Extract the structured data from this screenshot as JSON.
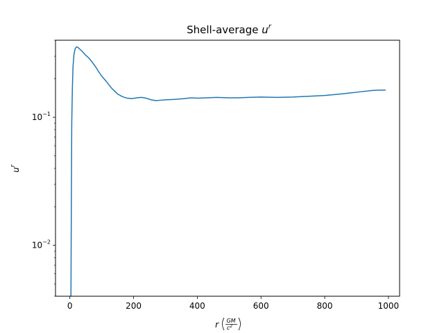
{
  "chart_data": {
    "type": "line",
    "title_text": "Shell-average ",
    "title_var": "u",
    "title_sup": "r",
    "xlabel": {
      "var": "r",
      "num": "GM",
      "den_base": "c",
      "den_exp": "2"
    },
    "ylabel": {
      "var": "u",
      "sup": "r"
    },
    "x_scale": "linear",
    "y_scale": "log",
    "xlim": [
      -45,
      1035
    ],
    "ylim": [
      0.004,
      0.4
    ],
    "x_ticks": [
      {
        "value": 0,
        "label": "0"
      },
      {
        "value": 200,
        "label": "200"
      },
      {
        "value": 400,
        "label": "400"
      },
      {
        "value": 600,
        "label": "600"
      },
      {
        "value": 800,
        "label": "800"
      },
      {
        "value": 1000,
        "label": "1000"
      }
    ],
    "y_ticks": [
      {
        "value": 0.01,
        "base": "10",
        "exp": "−2"
      },
      {
        "value": 0.1,
        "base": "10",
        "exp": "−1"
      }
    ],
    "grid": false,
    "series": [
      {
        "color": "#1f77b4",
        "x": [
          3.5,
          4,
          5,
          6,
          8,
          10,
          13,
          17,
          21,
          25,
          30,
          40,
          50,
          60,
          70,
          80,
          90,
          100,
          115,
          130,
          150,
          165,
          180,
          195,
          210,
          225,
          240,
          255,
          270,
          285,
          300,
          330,
          360,
          380,
          400,
          430,
          460,
          500,
          530,
          560,
          600,
          650,
          700,
          750,
          800,
          850,
          900,
          950,
          970,
          990
        ],
        "y": [
          0.004,
          0.008,
          0.03,
          0.09,
          0.17,
          0.25,
          0.31,
          0.345,
          0.355,
          0.352,
          0.343,
          0.325,
          0.305,
          0.29,
          0.27,
          0.25,
          0.228,
          0.21,
          0.19,
          0.17,
          0.152,
          0.145,
          0.141,
          0.14,
          0.142,
          0.143,
          0.141,
          0.137,
          0.135,
          0.136,
          0.137,
          0.138,
          0.14,
          0.142,
          0.141,
          0.142,
          0.143,
          0.142,
          0.142,
          0.143,
          0.144,
          0.143,
          0.144,
          0.146,
          0.148,
          0.152,
          0.157,
          0.162,
          0.163,
          0.163
        ]
      }
    ]
  }
}
